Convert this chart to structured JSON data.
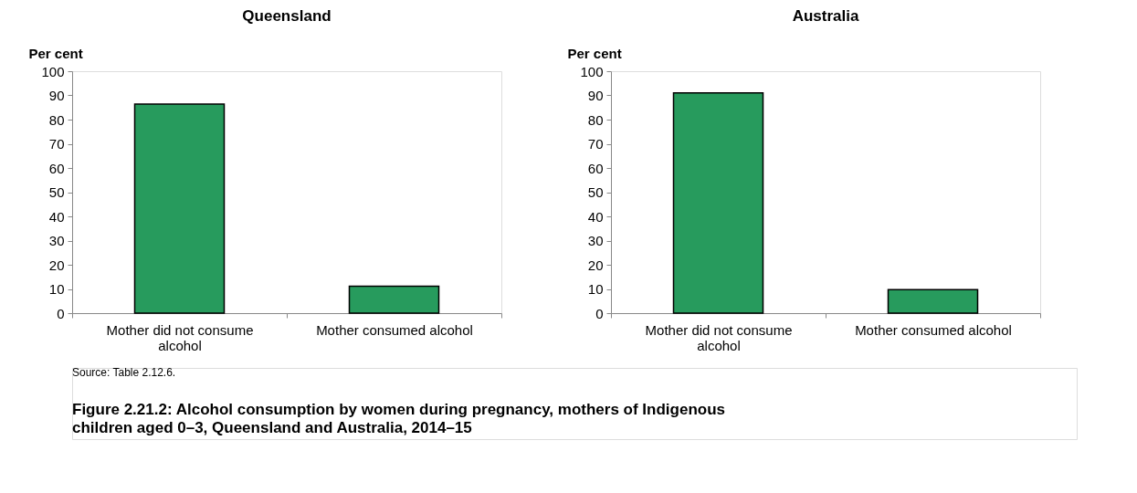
{
  "chart_data": [
    {
      "type": "bar",
      "title": "Queensland",
      "ylabel": "Per cent",
      "categories": [
        "Mother did not consume alcohol",
        "Mother consumed alcohol"
      ],
      "values": [
        86.4,
        11.1
      ],
      "color": "#279b5d",
      "ylim": [
        0,
        100
      ],
      "yticks": [
        0,
        10,
        20,
        30,
        40,
        50,
        60,
        70,
        80,
        90,
        100
      ],
      "grid": false
    },
    {
      "type": "bar",
      "title": "Australia",
      "ylabel": "Per cent",
      "categories": [
        "Mother did not consume alcohol",
        "Mother consumed alcohol"
      ],
      "values": [
        91.0,
        9.7
      ],
      "color": "#279b5d",
      "ylim": [
        0,
        100
      ],
      "yticks": [
        0,
        10,
        20,
        30,
        40,
        50,
        60,
        70,
        80,
        90,
        100
      ],
      "grid": false
    },
    {
      "type": "other",
      "title": "Figure 2.21.2: Alcohol consumption by women during pregnancy, mothers of Indigenous children aged 0–3, Queensland and Australia, 2014–15",
      "annotations": [
        "Source: Table 2.12.6."
      ]
    }
  ]
}
